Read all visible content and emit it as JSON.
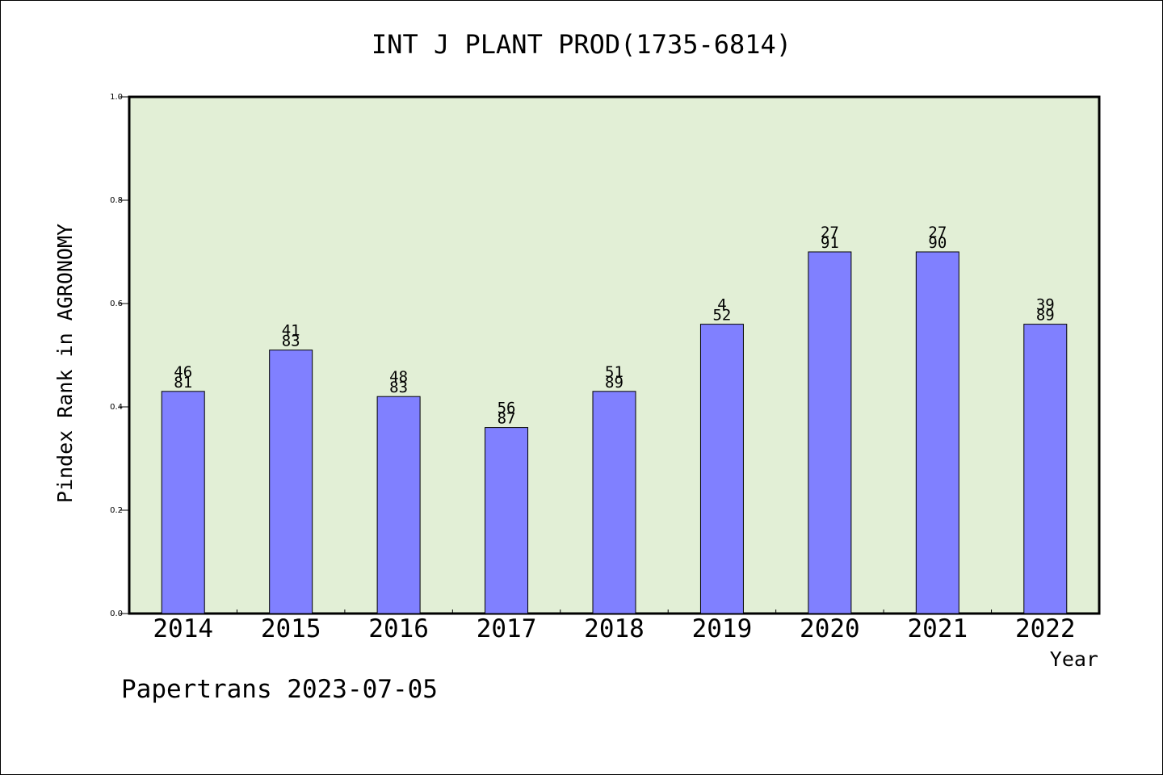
{
  "chart_data": {
    "type": "bar",
    "title": "INT J PLANT PROD(1735-6814)",
    "xlabel": "Year",
    "ylabel": "Pindex Rank in AGRONOMY",
    "footer": "Papertrans 2023-07-05",
    "categories": [
      "2014",
      "2015",
      "2016",
      "2017",
      "2018",
      "2019",
      "2020",
      "2021",
      "2022"
    ],
    "values": [
      0.43,
      0.51,
      0.42,
      0.36,
      0.43,
      0.56,
      0.7,
      0.7,
      0.56
    ],
    "bar_labels_top": [
      "46",
      "41",
      "48",
      "56",
      "51",
      "4",
      "27",
      "27",
      "39"
    ],
    "bar_labels_bottom": [
      "81",
      "83",
      "83",
      "87",
      "89",
      "52",
      "91",
      "90",
      "89"
    ],
    "ylim": [
      0.0,
      1.0
    ],
    "yticks": [
      "0.0",
      "0.2",
      "0.4",
      "0.6",
      "0.8",
      "1.0"
    ],
    "grid": false,
    "colors": {
      "bar_fill": "#8080ff",
      "plot_background": "#e2efd6",
      "axis": "#000000"
    }
  }
}
